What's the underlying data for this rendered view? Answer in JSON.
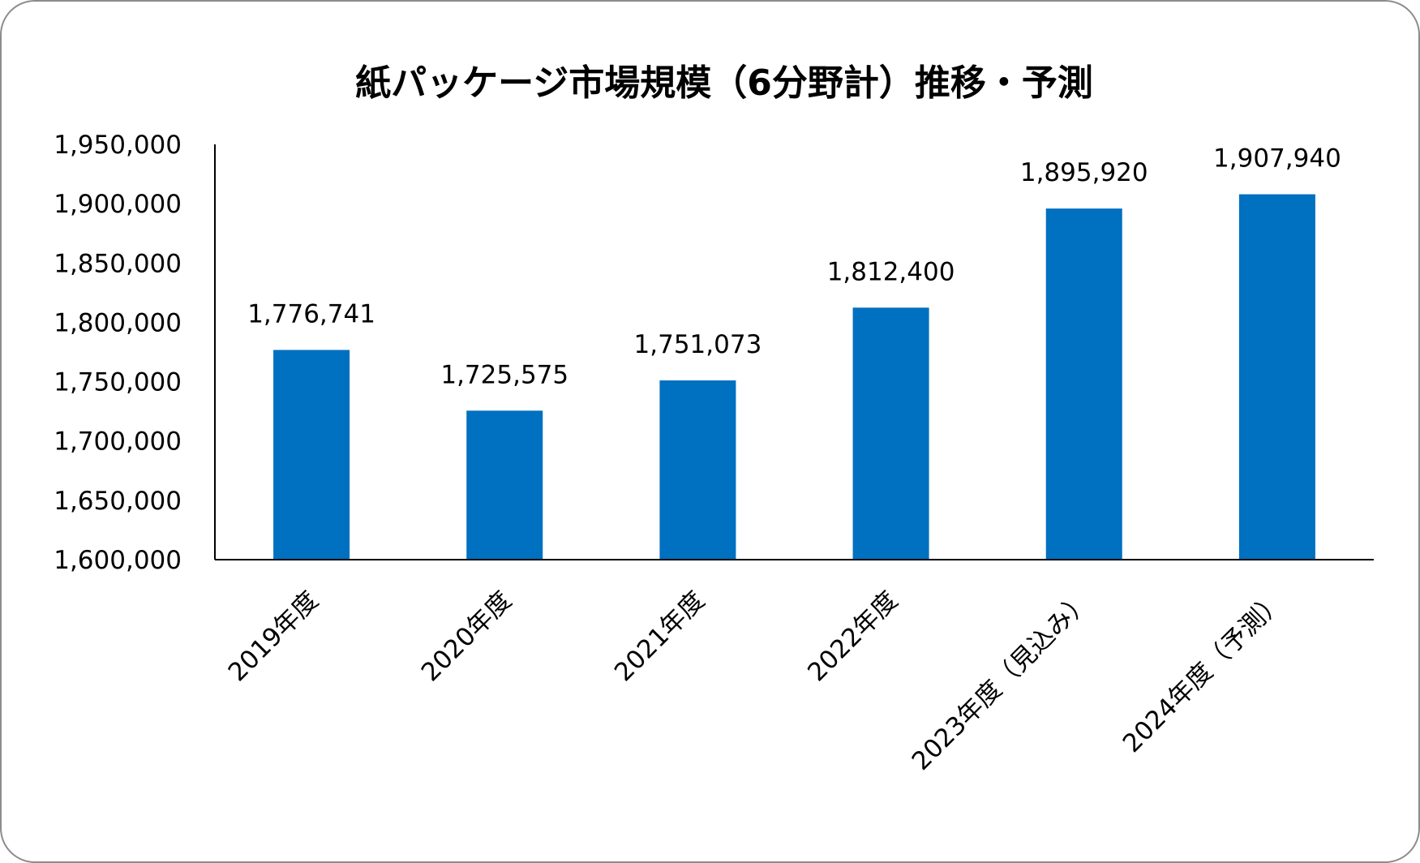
{
  "chart_data": {
    "type": "bar",
    "title": "紙パッケージ市場規模（6分野計）推移・予測",
    "xlabel": "",
    "ylabel": "",
    "categories": [
      "2019年度",
      "2020年度",
      "2021年度",
      "2022年度",
      "2023年度（見込み）",
      "2024年度（予測）"
    ],
    "series": [
      {
        "values": [
          1776741,
          1725575,
          1751073,
          1812400,
          1895920,
          1907940
        ],
        "value_labels": [
          "1,776,741",
          "1,725,575",
          "1,751,073",
          "1,812,400",
          "1,895,920",
          "1,907,940"
        ]
      }
    ],
    "ylim": [
      1600000,
      1950000
    ],
    "yticks": [
      1600000,
      1650000,
      1700000,
      1750000,
      1800000,
      1850000,
      1900000,
      1950000
    ],
    "ytick_labels": [
      "1,600,000",
      "1,650,000",
      "1,700,000",
      "1,750,000",
      "1,800,000",
      "1,850,000",
      "1,900,000",
      "1,950,000"
    ],
    "bar_color": "#0070C0",
    "grid": false,
    "legend": "none"
  }
}
